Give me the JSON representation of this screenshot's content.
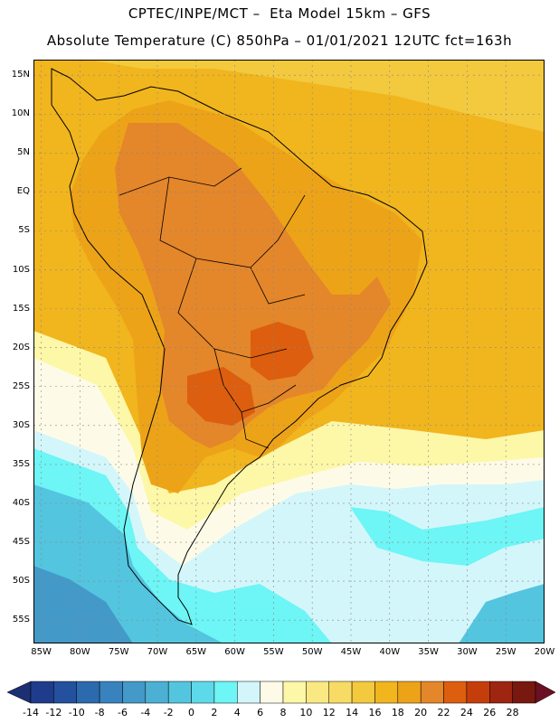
{
  "title_line1": "CPTEC/INPE/MCT –  Eta Model 15km – GFS",
  "title_line2": "Absolute Temperature (C) 850hPa – 01/01/2021 12UTC fct=163h",
  "lat_labels": [
    "15N",
    "10N",
    "5N",
    "EQ",
    "5S",
    "10S",
    "15S",
    "20S",
    "25S",
    "30S",
    "35S",
    "40S",
    "45S",
    "50S",
    "55S"
  ],
  "lon_labels": [
    "85W",
    "80W",
    "75W",
    "70W",
    "65W",
    "60W",
    "55W",
    "50W",
    "45W",
    "40W",
    "35W",
    "30W",
    "25W",
    "20W"
  ],
  "colorbar": {
    "tick_labels": [
      "-14",
      "-12",
      "-10",
      "-8",
      "-6",
      "-4",
      "-2",
      "0",
      "2",
      "4",
      "6",
      "8",
      "10",
      "12",
      "14",
      "16",
      "18",
      "20",
      "22",
      "24",
      "26",
      "28"
    ],
    "colors": [
      "#1f3c8c",
      "#24519e",
      "#2c6aae",
      "#3883bd",
      "#4399c8",
      "#4cb0d4",
      "#53c5df",
      "#5ed9ea",
      "#6ef5f5",
      "#d3f6fa",
      "#fdfbe8",
      "#fdf7a8",
      "#fae983",
      "#f8db64",
      "#f3c93e",
      "#f1b51d",
      "#eda318",
      "#e4862a",
      "#dc5e0e",
      "#c63d0c",
      "#9e2510",
      "#79180f"
    ],
    "end_low_color": "#1b2f73",
    "end_high_color": "#6b1022"
  },
  "grid": {
    "lat_min": -58,
    "lat_max": 17,
    "lon_min": -86,
    "lon_max": -20
  },
  "zones_colors": {
    "bg": "#f1b51d",
    "north_ocean": "#f3c93e",
    "land_warm": "#eda318",
    "land_hot": "#e4862a",
    "land_hottest": "#dc5e0e",
    "south_pale": "#fdf7a8",
    "south_cream": "#fdfbe8",
    "south_icy": "#d3f6fa",
    "south_cyan": "#6ef5f5",
    "south_teal": "#53c5df",
    "south_deep": "#4399c8",
    "outline": "#000000",
    "gridline": "#888888"
  }
}
